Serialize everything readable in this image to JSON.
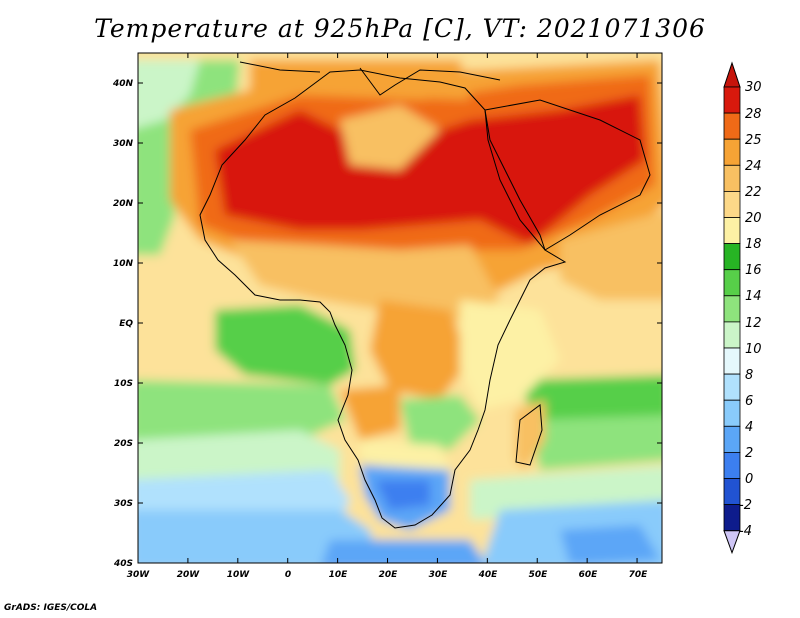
{
  "title": "Temperature at 925hPa [C], VT: 2021071306",
  "credit": "GrADS: IGES/COLA",
  "map": {
    "region": "Africa",
    "variable": "Temperature at 925hPa",
    "units": "C",
    "lon_range": [
      -30,
      75
    ],
    "lat_range": [
      -40,
      45
    ],
    "x_ticks": [
      "30W",
      "20W",
      "10W",
      "0",
      "10E",
      "20E",
      "30E",
      "40E",
      "50E",
      "60E",
      "70E"
    ],
    "y_ticks": [
      "40N",
      "30N",
      "20N",
      "10N",
      "EQ",
      "10S",
      "20S",
      "30S",
      "40S"
    ]
  },
  "colorbar": {
    "levels": [
      "30",
      "28",
      "25",
      "24",
      "22",
      "20",
      "18",
      "16",
      "14",
      "12",
      "10",
      "8",
      "6",
      "4",
      "2",
      "0",
      "-2",
      "-4"
    ],
    "colors": [
      "#d8190d",
      "#f06a17",
      "#f6a335",
      "#f8c062",
      "#fcd888",
      "#fdf1a5",
      "#27b424",
      "#57cf49",
      "#8ee37d",
      "#cbf5c8",
      "#e5f8fc",
      "#b0e1fd",
      "#89cbfb",
      "#5ba6f7",
      "#3c7ff0",
      "#2153d2",
      "#0e1c8c"
    ],
    "top_color": "#c6140b",
    "bottom_color": "#cfc6f6"
  }
}
